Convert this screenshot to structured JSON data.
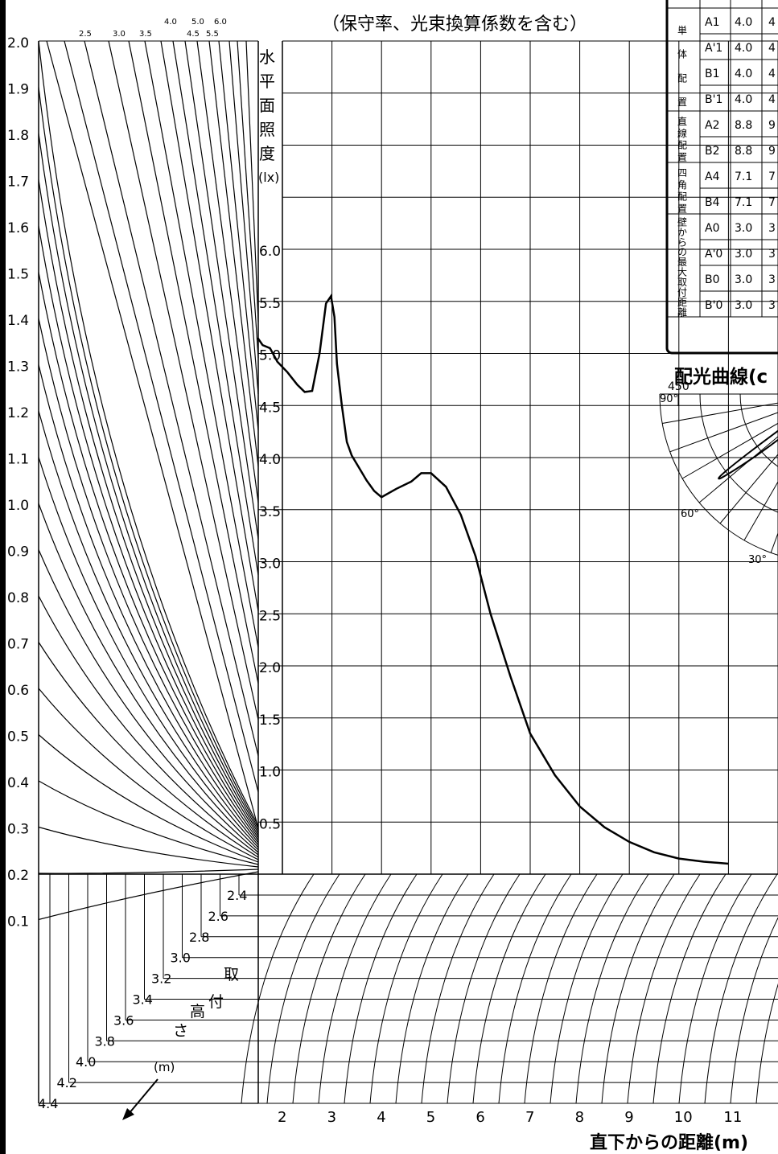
{
  "header": {
    "note": "（保守率、光束換算係数を含む）"
  },
  "left_scale": {
    "values": [
      "2.0",
      "1.9",
      "1.8",
      "1.7",
      "1.6",
      "1.5",
      "1.4",
      "1.3",
      "1.2",
      "1.1",
      "1.0",
      "0.9",
      "0.8",
      "0.7",
      "0.6",
      "0.5",
      "0.4",
      "0.3",
      "0.2",
      "0.1"
    ],
    "top_labels_row1": [
      "4.0",
      "5.0",
      "6.0"
    ],
    "top_labels_row2": [
      "2.5",
      "3.0",
      "3.5",
      "4.5",
      "5.5"
    ]
  },
  "mount_height": {
    "labels": [
      "2.4",
      "2.6",
      "2.8",
      "3.0",
      "3.2",
      "3.4",
      "3.6",
      "3.8",
      "4.0",
      "4.2",
      "4.4"
    ],
    "title_chars": [
      "取",
      "付",
      "高",
      "さ"
    ],
    "unit": "(m)"
  },
  "illuminance_axis": {
    "title_chars": [
      "水",
      "平",
      "面",
      "照",
      "度"
    ],
    "unit": "(lx)",
    "ticks": [
      "6.0",
      "5.5",
      "5.0",
      "4.5",
      "4.0",
      "3.5",
      "3.0",
      "2.5",
      "2.0",
      "1.5",
      "1.0",
      "0.5"
    ]
  },
  "distance_axis": {
    "ticks": [
      "2",
      "3",
      "4",
      "5",
      "6",
      "7",
      "8",
      "9",
      "10",
      "11"
    ],
    "label": "直下からの距離(m)"
  },
  "table": {
    "groups": [
      {
        "label": "単体配置",
        "rows": [
          [
            "A1",
            "4.0",
            "4"
          ],
          [
            "A'1",
            "4.0",
            "4"
          ],
          [
            "B1",
            "4.0",
            "4"
          ],
          [
            "B'1",
            "4.0",
            "4"
          ]
        ]
      },
      {
        "label": "直線配置",
        "rows": [
          [
            "A2",
            "8.8",
            "9"
          ],
          [
            "B2",
            "8.8",
            "9"
          ]
        ]
      },
      {
        "label": "四角配置",
        "rows": [
          [
            "A4",
            "7.1",
            "7"
          ],
          [
            "B4",
            "7.1",
            "7"
          ]
        ]
      },
      {
        "label": "壁からの最大取付距離",
        "rows": [
          [
            "A0",
            "3.0",
            "3"
          ],
          [
            "A'0",
            "3.0",
            "3"
          ],
          [
            "B0",
            "3.0",
            "3"
          ],
          [
            "B'0",
            "3.0",
            "3"
          ]
        ]
      }
    ]
  },
  "polar": {
    "title": "配光曲線(c",
    "scale": "450",
    "angles": [
      "90°",
      "60°",
      "30°"
    ]
  },
  "chart_data": {
    "type": "line",
    "x_label": "直下からの距離(m)",
    "y_label": "水平面照度(lx)",
    "ylim": [
      0,
      6.5
    ],
    "xlim": [
      1.5,
      11.0
    ],
    "series": [
      {
        "x": [
          1.5,
          1.6,
          1.75,
          1.9,
          2.1,
          2.3,
          2.45,
          2.6,
          2.75,
          2.88,
          2.98,
          3.05,
          3.1,
          3.2,
          3.3,
          3.4,
          3.45,
          3.55,
          3.7,
          3.85,
          4.0,
          4.3,
          4.6,
          4.8,
          5.0,
          5.3,
          5.6,
          5.9,
          6.2,
          6.6,
          7.0,
          7.5,
          8.0,
          8.5,
          9.0,
          9.5,
          10.0,
          10.5,
          11.0
        ],
        "y": [
          5.15,
          5.08,
          5.05,
          4.92,
          4.82,
          4.7,
          4.63,
          4.64,
          5.0,
          5.48,
          5.55,
          5.35,
          4.9,
          4.5,
          4.15,
          4.02,
          3.98,
          3.9,
          3.78,
          3.68,
          3.62,
          3.7,
          3.77,
          3.85,
          3.85,
          3.72,
          3.45,
          3.05,
          2.5,
          1.9,
          1.35,
          0.95,
          0.65,
          0.45,
          0.31,
          0.21,
          0.15,
          0.12,
          0.1
        ]
      }
    ]
  }
}
